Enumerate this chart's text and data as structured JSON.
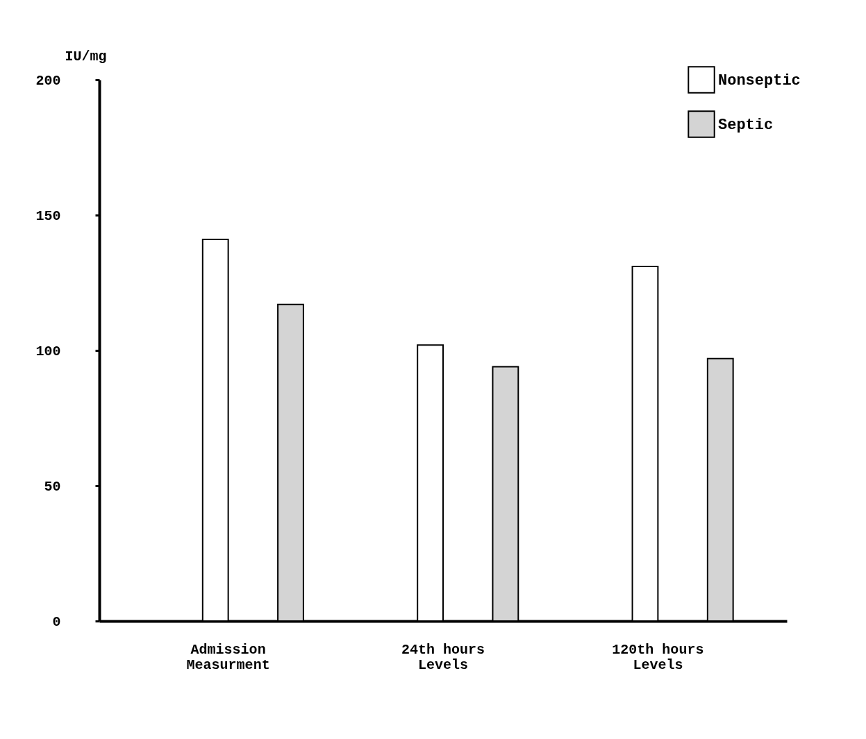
{
  "chart_data": {
    "type": "bar",
    "ylabel": "IU/mg",
    "categories": [
      "Admission Measurment",
      "24th hours Levels",
      "120th hours Levels"
    ],
    "series": [
      {
        "name": "Nonseptic",
        "color": "#ffffff",
        "values": [
          141,
          102,
          131
        ]
      },
      {
        "name": "Septic",
        "color": "#d4d4d4",
        "values": [
          117,
          94,
          97
        ]
      }
    ],
    "ylim": [
      0,
      200
    ],
    "yticks": [
      0,
      50,
      100,
      150,
      200
    ],
    "grid": false,
    "legend": "top right"
  }
}
